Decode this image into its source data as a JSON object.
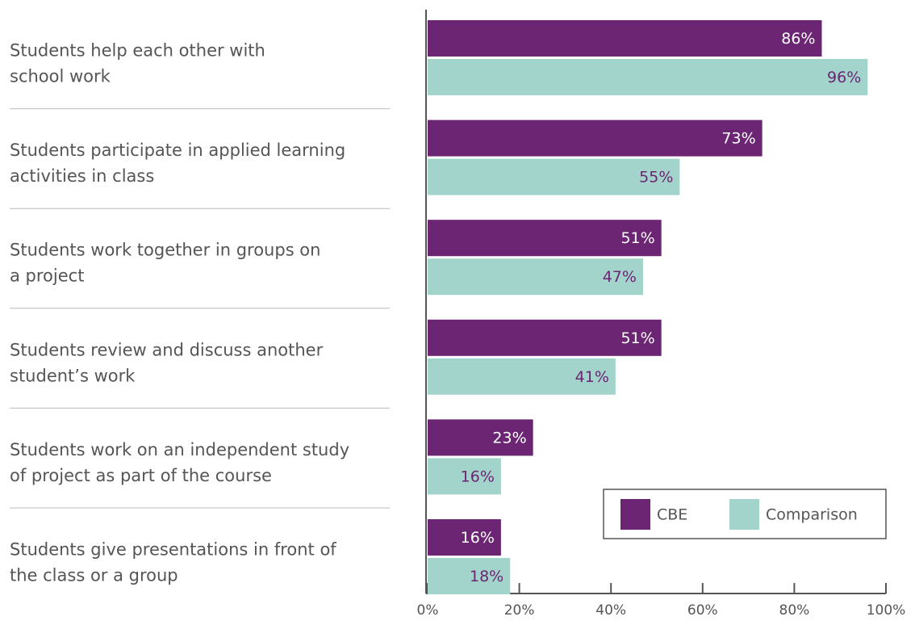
{
  "chart_data": {
    "type": "hbar",
    "categories": [
      [
        "Students help each other with",
        "school work"
      ],
      [
        "Students participate in applied learning",
        "activities in class"
      ],
      [
        "Students work together in groups on",
        "a project"
      ],
      [
        "Students review and discuss another",
        "student’s work"
      ],
      [
        "Students work on an independent study",
        "of project as part of the course"
      ],
      [
        "Students give presentations in front of",
        "the class or a group"
      ]
    ],
    "series": [
      {
        "name": "CBE",
        "color": "#6b2573",
        "values": [
          86,
          73,
          51,
          51,
          23,
          16
        ],
        "value_labels": [
          "86%",
          "73%",
          "51%",
          "51%",
          "23%",
          "16%"
        ]
      },
      {
        "name": "Comparison",
        "color": "#a3d4cc",
        "values": [
          96,
          55,
          47,
          41,
          16,
          18
        ],
        "value_labels": [
          "96%",
          "55%",
          "47%",
          "41%",
          "16%",
          "18%"
        ]
      }
    ],
    "xlim": [
      0,
      100
    ],
    "xticks": [
      {
        "value": 0,
        "label": "0%"
      },
      {
        "value": 20,
        "label": "20%"
      },
      {
        "value": 40,
        "label": "40%"
      },
      {
        "value": 60,
        "label": "60%"
      },
      {
        "value": 80,
        "label": "80%"
      },
      {
        "value": 100,
        "label": "100%"
      }
    ],
    "legend": "lower right"
  }
}
